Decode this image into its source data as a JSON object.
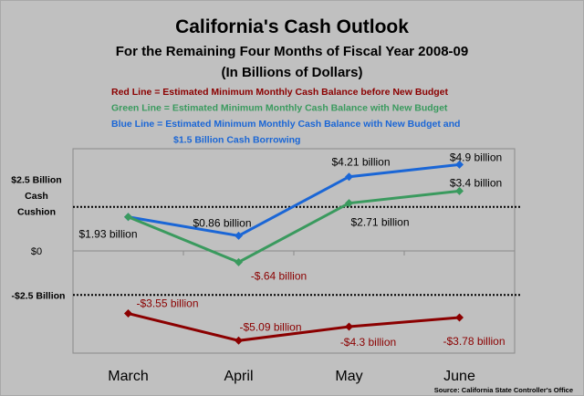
{
  "chart_data": {
    "type": "line",
    "title": "California's Cash Outlook",
    "subtitle": "For the Remaining Four Months of Fiscal Year 2008-09",
    "subtitle2": "(In Billions of Dollars)",
    "legend": [
      {
        "text": "Red Line = Estimated Minimum Monthly Cash Balance before New Budget",
        "color": "#8b0000"
      },
      {
        "text": "Green Line = Estimated Minimum Monthly Cash Balance with New Budget",
        "color": "#3a9a5e"
      },
      {
        "text": "Blue Line = Estimated Minimum Monthly Cash Balance with New Budget and",
        "color": "#1a66d6"
      },
      {
        "text": "$1.5 Billion Cash Borrowing",
        "color": "#1a66d6"
      }
    ],
    "legend_placement": "top-center",
    "categories": [
      "March",
      "April",
      "May",
      "June"
    ],
    "ylim": [
      -5.8,
      5.8
    ],
    "y_reference_lines": [
      {
        "value": 2.5,
        "label": [
          "$2.5 Billion",
          "Cash",
          "Cushion"
        ],
        "style": "dotted"
      },
      {
        "value": -2.5,
        "label": [
          "-$2.5 Billion"
        ],
        "style": "dotted"
      }
    ],
    "y_zero_label": "$0",
    "grid": false,
    "series": [
      {
        "color": "#1a66d6",
        "values": [
          1.93,
          0.86,
          4.21,
          4.9
        ],
        "labels": [
          "",
          "$0.86 billion",
          "$4.21 billion",
          "$4.9 billion"
        ],
        "label_color": "#000000"
      },
      {
        "color": "#3a9a5e",
        "values": [
          1.93,
          -0.64,
          2.71,
          3.4
        ],
        "labels": [
          "$1.93 billion",
          "-$.64 billion",
          "$2.71 billion",
          "$3.4 billion"
        ],
        "label_colors": [
          "#000000",
          "#8b0000",
          "#000000",
          "#000000"
        ]
      },
      {
        "color": "#8b0000",
        "values": [
          -3.55,
          -5.09,
          -4.3,
          -3.78
        ],
        "labels": [
          "-$3.55 billion",
          "-$5.09 billion",
          "-$4.3 billion",
          "-$3.78 billion"
        ],
        "label_color": "#8b0000"
      }
    ],
    "source": "Source: California State Controller's Office"
  }
}
